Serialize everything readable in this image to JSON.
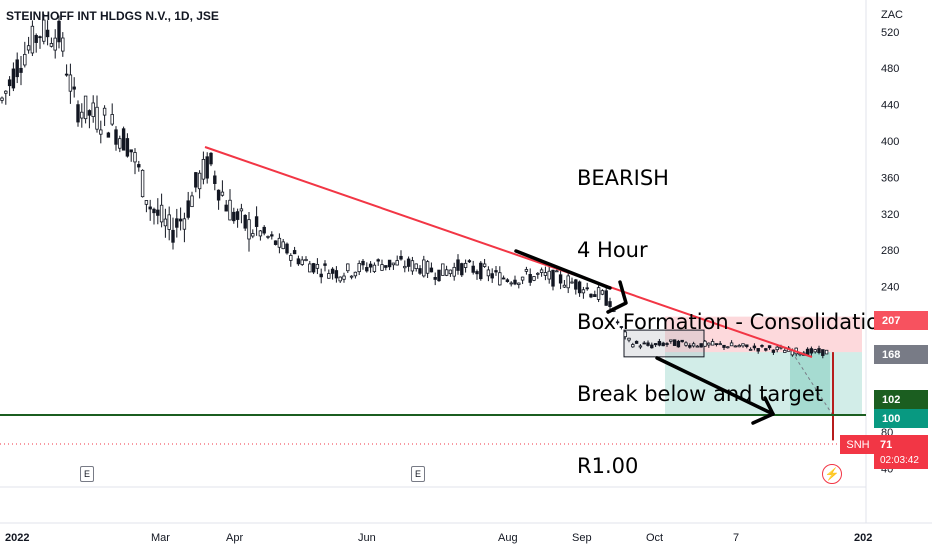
{
  "header": {
    "title": "STEINHOFF INT HLDGS N.V., 1D, JSE"
  },
  "chart_data": {
    "type": "candlestick",
    "title": "STEINHOFF INT HLDGS N.V., 1D, JSE",
    "currency": "ZAC",
    "y_ticks": [
      40,
      80,
      200,
      240,
      280,
      320,
      360,
      400,
      440,
      480,
      520
    ],
    "x_ticks": [
      "2022",
      "Mar",
      "Apr",
      "Jun",
      "Aug",
      "Sep",
      "Oct",
      "7",
      "202"
    ],
    "price_labels": [
      {
        "value": "207",
        "color": "#f7525f"
      },
      {
        "value": "168",
        "color": "#787b86"
      },
      {
        "value": "102",
        "color": "#1b5e20"
      },
      {
        "value": "100",
        "color": "#089981"
      }
    ],
    "last_price": {
      "symbol": "SNH",
      "value": "71",
      "countdown": "02:03:42",
      "color": "#f23645"
    },
    "horizontal_line": {
      "value": 100,
      "color": "#1b5e20"
    },
    "trend_line_color": "#f23645",
    "short_position": {
      "stop": 207,
      "entry": 168,
      "target": 100
    },
    "box_range": {
      "top": 190,
      "bottom": 165
    },
    "events": [
      "E",
      "E"
    ]
  },
  "annotation": {
    "lines": [
      "BEARISH",
      "4 Hour",
      "Box Formation - Consolidation",
      "Break below and target",
      "R1.00"
    ]
  }
}
